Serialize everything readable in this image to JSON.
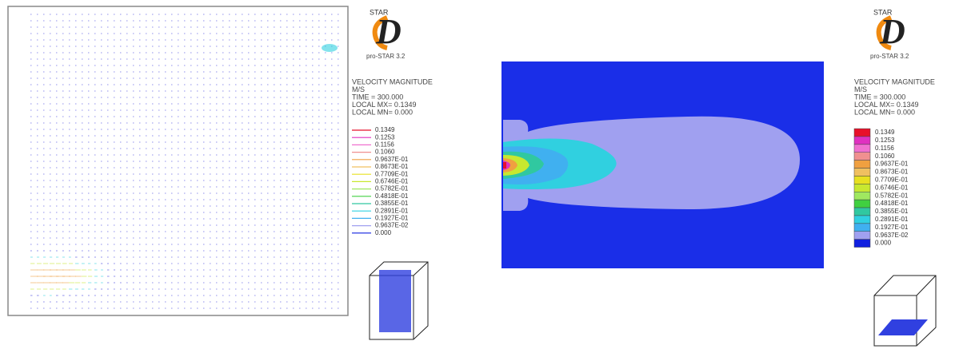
{
  "panels": [
    {
      "logo": {
        "brand": "STAR",
        "letter": "D",
        "version": "pro-STAR 3.2"
      },
      "info": [
        "VELOCITY MAGNITUDE",
        "M/S",
        "TIME =  300.000",
        "LOCAL MX= 0.1349",
        "LOCAL MN=  0.000"
      ],
      "legend": {
        "labels": [
          "0.1349",
          "0.1253",
          "0.1156",
          "0.1060",
          "0.9637E-01",
          "0.8673E-01",
          "0.7709E-01",
          "0.6746E-01",
          "0.5782E-01",
          "0.4818E-01",
          "0.3855E-01",
          "0.2891E-01",
          "0.1927E-01",
          "0.9637E-02",
          "0.000"
        ],
        "colors": [
          "#e8102a",
          "#e030c0",
          "#f070d0",
          "#f09090",
          "#f0a040",
          "#f0c060",
          "#e8e020",
          "#c8e830",
          "#a0e860",
          "#40d040",
          "#30c8a0",
          "#30d0e0",
          "#40b0f0",
          "#a0a0f0",
          "#1020e0"
        ]
      }
    },
    {
      "logo": {
        "brand": "STAR",
        "letter": "D",
        "version": "pro-STAR 3.2"
      },
      "info": [
        "VELOCITY MAGNITUDE",
        "M/S",
        "TIME =  300.000",
        "LOCAL MX= 0.1349",
        "LOCAL MN=  0.000"
      ],
      "legend": {
        "labels": [
          "0.1349",
          "0.1253",
          "0.1156",
          "0.1060",
          "0.9637E-01",
          "0.8673E-01",
          "0.7709E-01",
          "0.6746E-01",
          "0.5782E-01",
          "0.4818E-01",
          "0.3855E-01",
          "0.2891E-01",
          "0.1927E-01",
          "0.9637E-02",
          "0.000"
        ],
        "colors": [
          "#e8102a",
          "#e030c0",
          "#f070d0",
          "#f09090",
          "#f0a040",
          "#f0c060",
          "#e8e020",
          "#c8e830",
          "#a0e860",
          "#40d040",
          "#30c8a0",
          "#30d0e0",
          "#40b0f0",
          "#a0a0f0",
          "#1020e0"
        ]
      }
    }
  ]
}
